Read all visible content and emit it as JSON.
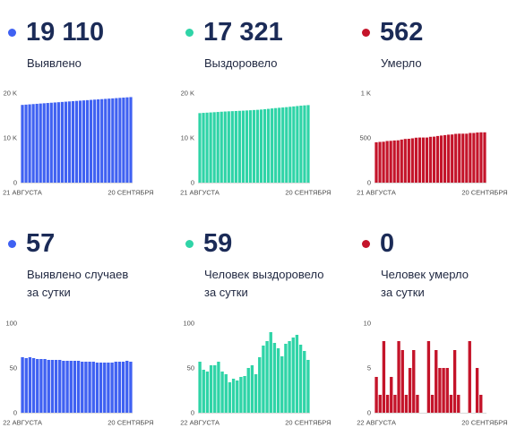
{
  "panels": [
    {
      "value": "19 110",
      "label_lines": [
        "Выявлено"
      ]
    },
    {
      "value": "17 321",
      "label_lines": [
        "Выздоровело"
      ]
    },
    {
      "value": "562",
      "label_lines": [
        "Умерло"
      ]
    },
    {
      "value": "57",
      "label_lines": [
        "Выявлено случаев",
        "за сутки"
      ]
    },
    {
      "value": "59",
      "label_lines": [
        "Человек выздоровело",
        "за сутки"
      ]
    },
    {
      "value": "0",
      "label_lines": [
        "Человек умерло",
        "за сутки"
      ]
    }
  ],
  "chart_data": [
    {
      "type": "bar",
      "color": "#3f61f2",
      "ylim": [
        0,
        20000
      ],
      "yticks": [
        {
          "value": 0,
          "label": "0"
        },
        {
          "value": 10000,
          "label": "10 K"
        },
        {
          "value": 20000,
          "label": "20 K"
        }
      ],
      "xticks": [
        "21 АВГУСТА",
        "20 СЕНТЯБРЯ"
      ],
      "values": [
        17364,
        17426,
        17487,
        17549,
        17610,
        17670,
        17730,
        17790,
        17849,
        17908,
        17967,
        18026,
        18084,
        18142,
        18200,
        18258,
        18316,
        18373,
        18430,
        18487,
        18544,
        18600,
        18656,
        18712,
        18768,
        18824,
        18881,
        18938,
        18995,
        19053,
        19110
      ]
    },
    {
      "type": "bar",
      "color": "#2fd4a7",
      "ylim": [
        0,
        20000
      ],
      "yticks": [
        {
          "value": 0,
          "label": "0"
        },
        {
          "value": 10000,
          "label": "10 K"
        },
        {
          "value": 20000,
          "label": "20 K"
        }
      ],
      "xticks": [
        "21 АВГУСТА",
        "20 СЕНТЯБРЯ"
      ],
      "values": [
        15531,
        15588,
        15636,
        15682,
        15735,
        15788,
        15845,
        15891,
        15934,
        15968,
        16006,
        16042,
        16082,
        16123,
        16173,
        16226,
        16269,
        16331,
        16406,
        16486,
        16576,
        16654,
        16726,
        16789,
        16866,
        16946,
        17030,
        17117,
        17193,
        17262,
        17321
      ]
    },
    {
      "type": "bar",
      "color": "#c4142a",
      "ylim": [
        0,
        1000
      ],
      "yticks": [
        {
          "value": 0,
          "label": "0"
        },
        {
          "value": 500,
          "label": "500"
        },
        {
          "value": 1000,
          "label": "1 K"
        }
      ],
      "xticks": [
        "21 АВГУСТА",
        "20 СЕНТЯБРЯ"
      ],
      "values": [
        451,
        455,
        457,
        465,
        467,
        471,
        473,
        481,
        488,
        490,
        495,
        502,
        504,
        504,
        504,
        512,
        514,
        521,
        526,
        531,
        536,
        538,
        545,
        547,
        547,
        547,
        555,
        555,
        560,
        562,
        562
      ]
    },
    {
      "type": "bar",
      "color": "#3f61f2",
      "ylim": [
        0,
        100
      ],
      "yticks": [
        {
          "value": 0,
          "label": "0"
        },
        {
          "value": 50,
          "label": "50"
        },
        {
          "value": 100,
          "label": "100"
        }
      ],
      "xticks": [
        "22 АВГУСТА",
        "20 СЕНТЯБРЯ"
      ],
      "values": [
        62,
        61,
        62,
        61,
        60,
        60,
        60,
        59,
        59,
        59,
        59,
        58,
        58,
        58,
        58,
        58,
        57,
        57,
        57,
        57,
        56,
        56,
        56,
        56,
        56,
        57,
        57,
        57,
        58,
        57
      ]
    },
    {
      "type": "bar",
      "color": "#2fd4a7",
      "ylim": [
        0,
        100
      ],
      "yticks": [
        {
          "value": 0,
          "label": "0"
        },
        {
          "value": 50,
          "label": "50"
        },
        {
          "value": 100,
          "label": "100"
        }
      ],
      "xticks": [
        "22 АВГУСТА",
        "20 СЕНТЯБРЯ"
      ],
      "values": [
        57,
        48,
        46,
        53,
        53,
        57,
        46,
        43,
        34,
        38,
        36,
        40,
        41,
        50,
        53,
        43,
        62,
        75,
        80,
        90,
        78,
        72,
        63,
        77,
        80,
        84,
        87,
        76,
        69,
        59
      ]
    },
    {
      "type": "bar",
      "color": "#c4142a",
      "ylim": [
        0,
        10
      ],
      "yticks": [
        {
          "value": 0,
          "label": "0"
        },
        {
          "value": 5,
          "label": "5"
        },
        {
          "value": 10,
          "label": "10"
        }
      ],
      "xticks": [
        "22 АВГУСТА",
        "20 СЕНТЯБРЯ"
      ],
      "values": [
        4,
        2,
        8,
        2,
        4,
        2,
        8,
        7,
        2,
        5,
        7,
        2,
        0,
        0,
        8,
        2,
        7,
        5,
        5,
        5,
        2,
        7,
        2,
        0,
        0,
        8,
        0,
        5,
        2,
        0
      ]
    }
  ]
}
